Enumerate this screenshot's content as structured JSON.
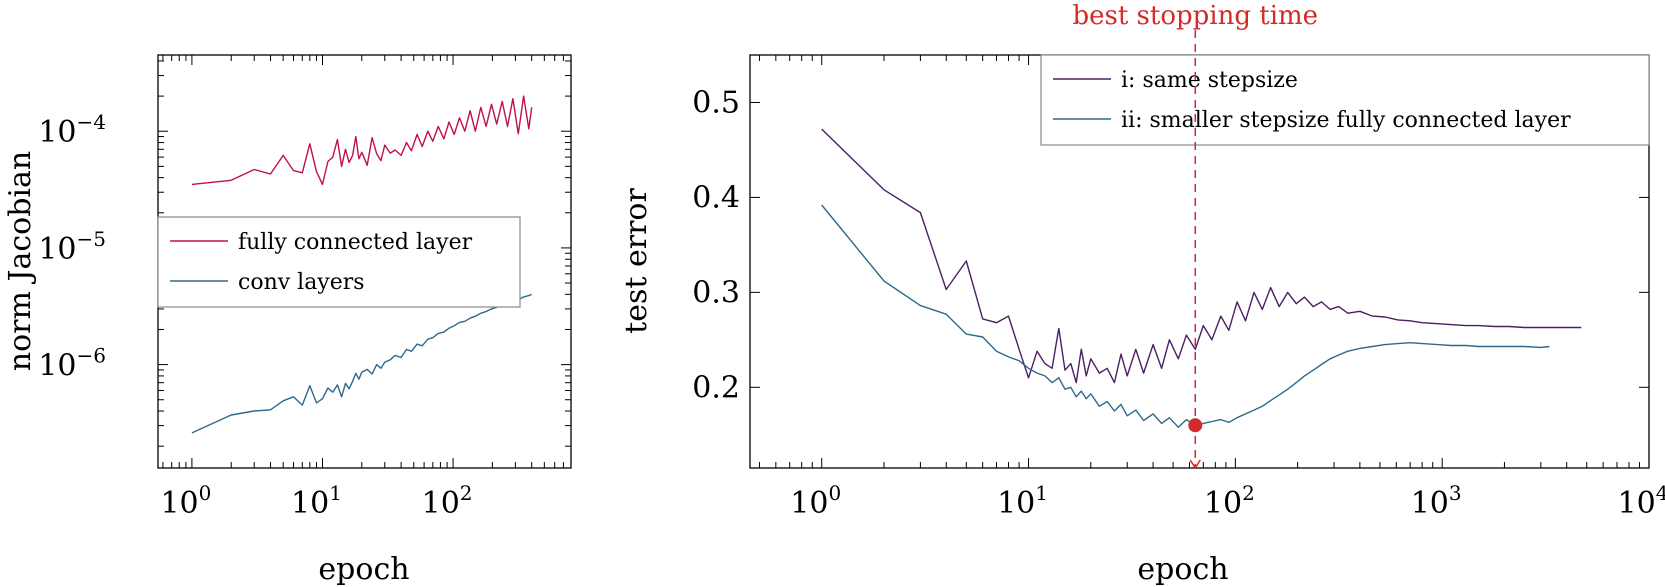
{
  "chart_data": [
    {
      "type": "line",
      "xscale": "log",
      "yscale": "log",
      "xlim": [
        0.55,
        800
      ],
      "ylim": [
        1.3e-07,
        0.00045
      ],
      "xlabel": "epoch",
      "ylabel": "norm Jacobian",
      "xticks": [
        1,
        10,
        100
      ],
      "xtick_labels": [
        {
          "base": "10",
          "exp": "0"
        },
        {
          "base": "10",
          "exp": "1"
        },
        {
          "base": "10",
          "exp": "2"
        }
      ],
      "yticks": [
        1e-06,
        1e-05,
        0.0001
      ],
      "ytick_labels": [
        {
          "base": "10",
          "exp": "−6"
        },
        {
          "base": "10",
          "exp": "−5"
        },
        {
          "base": "10",
          "exp": "−4"
        }
      ],
      "legend_position": "center-left",
      "series": [
        {
          "name": "fully connected layer",
          "color": "#c0104a",
          "x": [
            1,
            2,
            3,
            4,
            5,
            6,
            7,
            8,
            9,
            10,
            11,
            12,
            13,
            14,
            15,
            16,
            17,
            18,
            19,
            20,
            22,
            24,
            26,
            28,
            30,
            33,
            36,
            40,
            44,
            48,
            53,
            58,
            64,
            70,
            77,
            85,
            93,
            102,
            112,
            123,
            135,
            148,
            163,
            179,
            197,
            216,
            238,
            261,
            287,
            316,
            347,
            380,
            400
          ],
          "y": [
            3.5e-05,
            3.8e-05,
            4.7e-05,
            4.3e-05,
            6.2e-05,
            4.6e-05,
            4.4e-05,
            7.8e-05,
            4.5e-05,
            3.5e-05,
            5.5e-05,
            6e-05,
            8.5e-05,
            5e-05,
            7e-05,
            5.4e-05,
            6.2e-05,
            9e-05,
            5.8e-05,
            6.6e-05,
            5.1e-05,
            8.8e-05,
            6.4e-05,
            5.6e-05,
            7.6e-05,
            6.5e-05,
            6.9e-05,
            6.2e-05,
            8e-05,
            6.8e-05,
            9.4e-05,
            7.4e-05,
            0.0001,
            8.2e-05,
            0.00011,
            8.6e-05,
            0.00012,
            9.4e-05,
            0.00013,
            0.0001,
            0.00015,
            0.0001,
            0.00016,
            0.00011,
            0.00017,
            0.000115,
            0.00018,
            0.00011,
            0.00019,
            9.5e-05,
            0.0002,
            0.000105,
            0.00016
          ]
        },
        {
          "name": "conv layers",
          "color": "#2d6a8a",
          "x": [
            1,
            2,
            3,
            4,
            5,
            6,
            7,
            8,
            9,
            10,
            11,
            12,
            13,
            14,
            15,
            16,
            17,
            18,
            19,
            20,
            22,
            24,
            26,
            28,
            30,
            33,
            36,
            40,
            44,
            48,
            53,
            58,
            64,
            70,
            77,
            85,
            93,
            102,
            112,
            123,
            135,
            148,
            163,
            179,
            197,
            216,
            238,
            261,
            287,
            316,
            347,
            380,
            400
          ],
          "y": [
            2.6e-07,
            3.7e-07,
            4e-07,
            4.1e-07,
            4.9e-07,
            5.3e-07,
            4.5e-07,
            6.6e-07,
            4.7e-07,
            5.1e-07,
            6.3e-07,
            5.8e-07,
            6.7e-07,
            5.3e-07,
            6.9e-07,
            6.2e-07,
            7.2e-07,
            8.4e-07,
            7.5e-07,
            8.6e-07,
            9.1e-07,
            8.3e-07,
            1e-06,
            9.3e-07,
            1.05e-06,
            1.1e-06,
            1.2e-06,
            1.15e-06,
            1.35e-06,
            1.3e-06,
            1.5e-06,
            1.45e-06,
            1.65e-06,
            1.7e-06,
            1.85e-06,
            1.9e-06,
            2.05e-06,
            2.15e-06,
            2.3e-06,
            2.35e-06,
            2.5e-06,
            2.6e-06,
            2.75e-06,
            2.85e-06,
            3e-06,
            3.1e-06,
            3.3e-06,
            3.4e-06,
            3.55e-06,
            3.6e-06,
            3.8e-06,
            3.9e-06,
            4e-06
          ]
        }
      ]
    },
    {
      "type": "line",
      "xscale": "log",
      "yscale": "linear",
      "xlim": [
        0.45,
        10000
      ],
      "ylim": [
        0.115,
        0.55
      ],
      "xlabel": "epoch",
      "ylabel": "test error",
      "xticks": [
        1,
        10,
        100,
        1000,
        10000
      ],
      "xtick_labels": [
        {
          "base": "10",
          "exp": "0"
        },
        {
          "base": "10",
          "exp": "1"
        },
        {
          "base": "10",
          "exp": "2"
        },
        {
          "base": "10",
          "exp": "3"
        },
        {
          "base": "10",
          "exp": "4"
        }
      ],
      "yticks": [
        0.2,
        0.3,
        0.4,
        0.5
      ],
      "ytick_labels": [
        "0.2",
        "0.3",
        "0.4",
        "0.5"
      ],
      "legend_position": "top-right",
      "annotation": {
        "text": "best stopping time",
        "color": "#d42a2a",
        "x": 64,
        "marker_y": 0.16
      },
      "series": [
        {
          "name": "i:  same stepsize",
          "color": "#4b1f63",
          "x": [
            1,
            2,
            3,
            4,
            5,
            6,
            7,
            8,
            9,
            10,
            11,
            12,
            13,
            14,
            15,
            16,
            17,
            18,
            19,
            20,
            22,
            24,
            26,
            28,
            30,
            33,
            36,
            40,
            44,
            48,
            53,
            58,
            64,
            70,
            77,
            85,
            93,
            102,
            112,
            123,
            135,
            148,
            163,
            179,
            197,
            216,
            238,
            261,
            287,
            316,
            350,
            400,
            460,
            530,
            610,
            700,
            800,
            950,
            1100,
            1300,
            1500,
            1800,
            2100,
            2500,
            3000,
            3500,
            4000,
            4700
          ],
          "y": [
            0.472,
            0.408,
            0.384,
            0.303,
            0.333,
            0.272,
            0.268,
            0.275,
            0.24,
            0.21,
            0.238,
            0.225,
            0.22,
            0.262,
            0.218,
            0.225,
            0.205,
            0.24,
            0.212,
            0.23,
            0.215,
            0.22,
            0.205,
            0.235,
            0.212,
            0.24,
            0.215,
            0.245,
            0.22,
            0.25,
            0.23,
            0.255,
            0.24,
            0.265,
            0.25,
            0.275,
            0.26,
            0.29,
            0.27,
            0.3,
            0.282,
            0.305,
            0.285,
            0.3,
            0.288,
            0.295,
            0.285,
            0.29,
            0.282,
            0.285,
            0.278,
            0.28,
            0.275,
            0.274,
            0.271,
            0.27,
            0.268,
            0.267,
            0.266,
            0.265,
            0.265,
            0.264,
            0.264,
            0.263,
            0.263,
            0.263,
            0.263,
            0.263
          ]
        },
        {
          "name": "ii:  smaller stepsize fully connected layer",
          "color": "#2d6a8a",
          "x": [
            1,
            2,
            3,
            4,
            5,
            6,
            7,
            8,
            9,
            10,
            11,
            12,
            13,
            14,
            15,
            16,
            17,
            18,
            19,
            20,
            22,
            24,
            26,
            28,
            30,
            33,
            36,
            40,
            44,
            48,
            53,
            58,
            64,
            70,
            77,
            85,
            93,
            102,
            112,
            123,
            135,
            148,
            163,
            179,
            197,
            216,
            238,
            261,
            287,
            316,
            350,
            400,
            460,
            530,
            610,
            700,
            800,
            950,
            1100,
            1300,
            1500,
            1800,
            2100,
            2500,
            3000,
            3300
          ],
          "y": [
            0.392,
            0.312,
            0.286,
            0.277,
            0.256,
            0.253,
            0.238,
            0.232,
            0.228,
            0.22,
            0.215,
            0.212,
            0.205,
            0.21,
            0.198,
            0.2,
            0.19,
            0.196,
            0.188,
            0.193,
            0.18,
            0.185,
            0.175,
            0.182,
            0.17,
            0.176,
            0.165,
            0.172,
            0.162,
            0.168,
            0.158,
            0.166,
            0.16,
            0.162,
            0.164,
            0.166,
            0.163,
            0.168,
            0.172,
            0.176,
            0.18,
            0.186,
            0.192,
            0.198,
            0.205,
            0.212,
            0.218,
            0.224,
            0.23,
            0.234,
            0.238,
            0.241,
            0.243,
            0.245,
            0.246,
            0.247,
            0.246,
            0.245,
            0.244,
            0.244,
            0.243,
            0.243,
            0.243,
            0.243,
            0.242,
            0.243
          ]
        }
      ]
    }
  ]
}
